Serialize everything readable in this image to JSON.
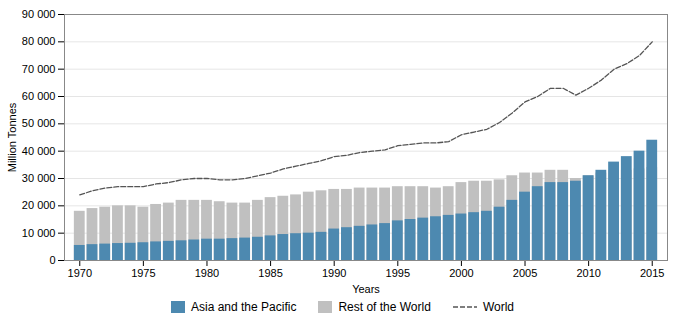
{
  "chart_data": {
    "type": "bar",
    "xlabel": "Years",
    "ylabel": "Million Tonnes",
    "x": [
      1970,
      1971,
      1972,
      1973,
      1974,
      1975,
      1976,
      1977,
      1978,
      1979,
      1980,
      1981,
      1982,
      1983,
      1984,
      1985,
      1986,
      1987,
      1988,
      1989,
      1990,
      1991,
      1992,
      1993,
      1994,
      1995,
      1996,
      1997,
      1998,
      1999,
      2000,
      2001,
      2002,
      2003,
      2004,
      2005,
      2006,
      2007,
      2008,
      2009,
      2010,
      2011,
      2012,
      2013,
      2014,
      2015
    ],
    "series": [
      {
        "name": "Asia and the Pacific",
        "type": "bar",
        "color": "#4d89b0",
        "values": [
          5500,
          5800,
          6000,
          6200,
          6300,
          6500,
          6800,
          7000,
          7200,
          7500,
          7800,
          7800,
          8000,
          8200,
          8500,
          9000,
          9500,
          9800,
          10000,
          10300,
          11500,
          12000,
          12500,
          13000,
          13500,
          14500,
          15000,
          15500,
          16000,
          16500,
          17000,
          17500,
          18000,
          19500,
          22000,
          25000,
          27000,
          28500,
          28500,
          29000,
          31000,
          33000,
          36000,
          38000,
          40000,
          44000
        ]
      },
      {
        "name": "Rest of the World",
        "type": "bar",
        "color": "#c0c0c0",
        "values": [
          18000,
          19000,
          19500,
          20000,
          20000,
          19500,
          20500,
          21000,
          22000,
          22000,
          22000,
          21500,
          21000,
          21000,
          22000,
          23000,
          23500,
          24000,
          25000,
          25500,
          26000,
          26000,
          26500,
          26500,
          26500,
          27000,
          27000,
          27000,
          26500,
          27000,
          28500,
          29000,
          29000,
          29500,
          31000,
          32000,
          32000,
          33000,
          33000,
          30000,
          31000,
          32000,
          33000,
          33000,
          33500,
          34000
        ]
      },
      {
        "name": "World",
        "type": "line",
        "color": "#555555",
        "line_style": "dashed",
        "values": [
          24000,
          25500,
          26500,
          27000,
          27000,
          27000,
          28000,
          28500,
          29500,
          30000,
          30000,
          29500,
          29500,
          30000,
          31000,
          32000,
          33500,
          34500,
          35500,
          36500,
          38000,
          38500,
          39500,
          40000,
          40500,
          42000,
          42500,
          43000,
          43000,
          43500,
          46000,
          47000,
          48000,
          50500,
          54000,
          58000,
          60000,
          63000,
          63000,
          60500,
          63000,
          66000,
          70000,
          72000,
          75000,
          80000
        ]
      }
    ],
    "stacked": false,
    "xlim": [
      1968.8,
      2016.2
    ],
    "xticks": [
      1970,
      1975,
      1980,
      1985,
      1990,
      1995,
      2000,
      2005,
      2010,
      2015
    ],
    "ylim": [
      0,
      90000
    ],
    "yticks": [
      0,
      {
        "value": 10000,
        "label": "10 000"
      },
      {
        "value": 20000,
        "label": "20 000"
      },
      {
        "value": 30000,
        "label": "30 000"
      },
      {
        "value": 40000,
        "label": "40 000"
      },
      {
        "value": 50000,
        "label": "50 000"
      },
      {
        "value": 60000,
        "label": "60 000"
      },
      {
        "value": 70000,
        "label": "70 000"
      },
      {
        "value": 80000,
        "label": "80 000"
      },
      {
        "value": 90000,
        "label": "90 000"
      }
    ],
    "grid": true,
    "legend": "bottom"
  }
}
